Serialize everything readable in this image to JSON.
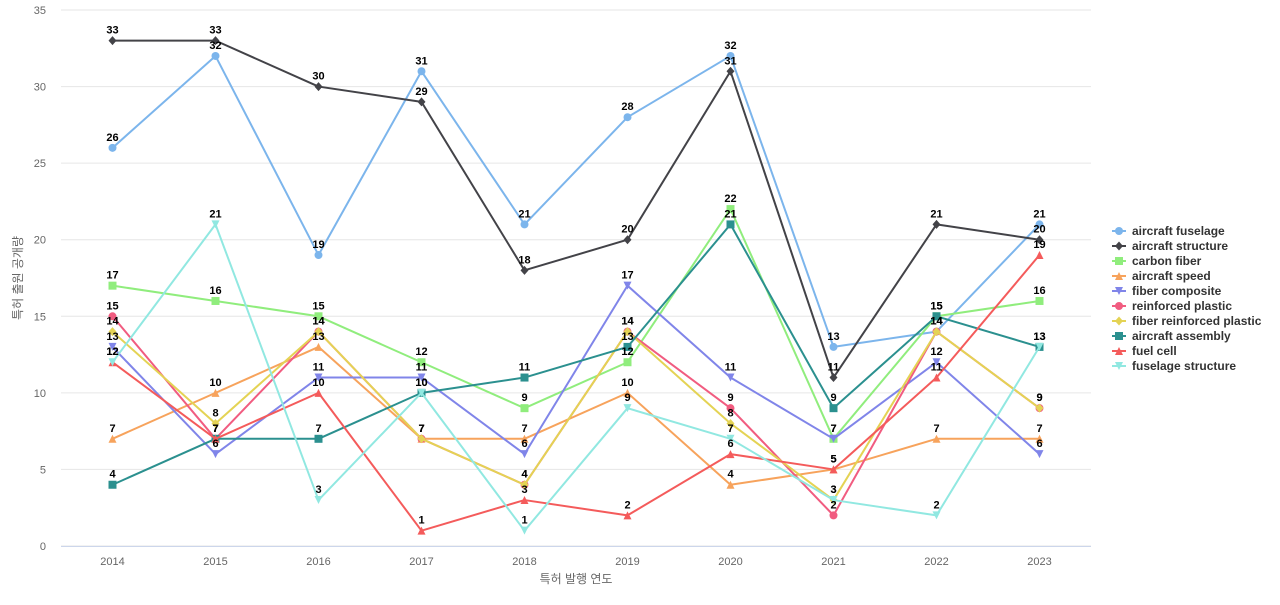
{
  "chart_data": {
    "type": "line",
    "title": "",
    "xlabel": "특허 발행 연도",
    "ylabel": "특허 출원 공개량",
    "ylim": [
      0,
      35
    ],
    "yticks": [
      0,
      5,
      10,
      15,
      20,
      25,
      30,
      35
    ],
    "categories": [
      "2014",
      "2015",
      "2016",
      "2017",
      "2018",
      "2019",
      "2020",
      "2021",
      "2022",
      "2023"
    ],
    "grid": "horizontal",
    "legend_position": "right",
    "series": [
      {
        "name": "aircraft fuselage",
        "color": "#7cb5ec",
        "marker": "circle",
        "values": [
          26,
          32,
          19,
          31,
          21,
          28,
          32,
          13,
          14,
          21
        ]
      },
      {
        "name": "aircraft structure",
        "color": "#434348",
        "marker": "diamond",
        "values": [
          33,
          33,
          30,
          29,
          18,
          20,
          31,
          11,
          21,
          20
        ]
      },
      {
        "name": "carbon fiber",
        "color": "#90ed7d",
        "marker": "square",
        "values": [
          17,
          16,
          15,
          12,
          9,
          12,
          22,
          7,
          15,
          16
        ]
      },
      {
        "name": "aircraft speed",
        "color": "#f7a35c",
        "marker": "triangle",
        "values": [
          7,
          10,
          13,
          7,
          7,
          10,
          4,
          5,
          7,
          7
        ]
      },
      {
        "name": "fiber composite",
        "color": "#8085e9",
        "marker": "triangle-down",
        "values": [
          13,
          6,
          11,
          11,
          6,
          17,
          11,
          7,
          12,
          6
        ]
      },
      {
        "name": "reinforced plastic",
        "color": "#f15c80",
        "marker": "circle",
        "values": [
          15,
          7,
          14,
          7,
          4,
          14,
          9,
          2,
          14,
          9
        ]
      },
      {
        "name": "fiber reinforced plastic",
        "color": "#e4d354",
        "marker": "diamond",
        "values": [
          14,
          8,
          14,
          7,
          4,
          14,
          8,
          3,
          14,
          9
        ]
      },
      {
        "name": "aircraft assembly",
        "color": "#2b908f",
        "marker": "square",
        "values": [
          4,
          7,
          7,
          10,
          11,
          13,
          21,
          9,
          15,
          13
        ]
      },
      {
        "name": "fuel cell",
        "color": "#f45b5b",
        "marker": "triangle",
        "values": [
          12,
          7,
          10,
          1,
          3,
          2,
          6,
          5,
          11,
          19
        ]
      },
      {
        "name": "fuselage structure",
        "color": "#91e8e1",
        "marker": "triangle-down",
        "values": [
          12,
          21,
          3,
          10,
          1,
          9,
          7,
          3,
          2,
          13
        ]
      }
    ]
  }
}
